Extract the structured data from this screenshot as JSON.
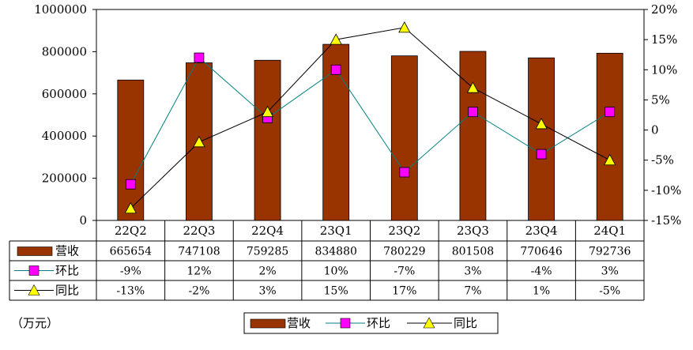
{
  "chart_data": {
    "type": "bar",
    "categories": [
      "22Q2",
      "22Q3",
      "22Q4",
      "23Q1",
      "23Q2",
      "23Q3",
      "23Q4",
      "24Q1"
    ],
    "series": [
      {
        "name": "营收",
        "type": "bar",
        "axis": "left",
        "color": "#993300",
        "values": [
          665654,
          747108,
          759285,
          834880,
          780229,
          801508,
          770646,
          792736
        ]
      },
      {
        "name": "环比",
        "type": "line",
        "axis": "right",
        "color": "#008080",
        "marker_color": "#ff00ff",
        "values": [
          -9,
          12,
          2,
          10,
          -7,
          3,
          -4,
          3
        ]
      },
      {
        "name": "同比",
        "type": "line",
        "axis": "right",
        "color": "#000000",
        "marker_color": "#ffff00",
        "values": [
          -13,
          -2,
          3,
          15,
          17,
          7,
          1,
          -5
        ]
      }
    ],
    "table_rows": [
      {
        "label": "营收",
        "cells": [
          "665654",
          "747108",
          "759285",
          "834880",
          "780229",
          "801508",
          "770646",
          "792736"
        ]
      },
      {
        "label": "环比",
        "cells": [
          "-9%",
          "12%",
          "2%",
          "10%",
          "-7%",
          "3%",
          "-4%",
          "3%"
        ]
      },
      {
        "label": "同比",
        "cells": [
          "-13%",
          "-2%",
          "3%",
          "15%",
          "17%",
          "7%",
          "1%",
          "-5%"
        ]
      }
    ],
    "y_left": {
      "ticks": [
        "0",
        "200000",
        "400000",
        "600000",
        "800000",
        "1000000"
      ],
      "ylim": [
        0,
        1000000
      ]
    },
    "y_right": {
      "ticks": [
        "-15%",
        "-10%",
        "-5%",
        "0",
        "5%",
        "10%",
        "15%",
        "20%"
      ],
      "ylim": [
        -15,
        20
      ]
    },
    "unit_note": "（万元）",
    "legend": {
      "position": "bottom",
      "items": [
        "营收",
        "环比",
        "同比"
      ]
    }
  }
}
